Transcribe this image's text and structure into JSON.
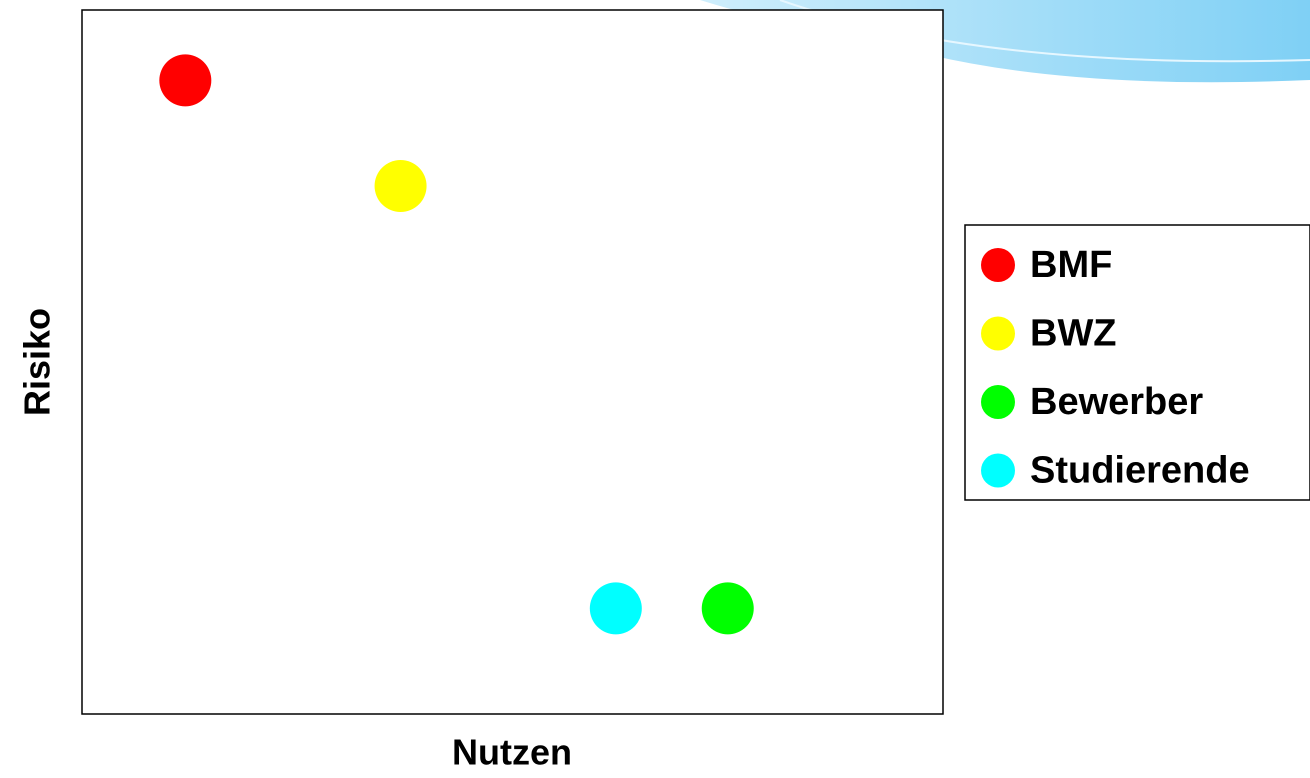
{
  "chart_data": {
    "type": "scatter",
    "x_label": "Nutzen",
    "y_label": "Risiko",
    "xlim": [
      0,
      10
    ],
    "ylim": [
      0,
      10
    ],
    "series": [
      {
        "name": "BMF",
        "color": "#ff0000",
        "x": [
          1.2
        ],
        "values": [
          9.0
        ]
      },
      {
        "name": "BWZ",
        "color": "#ffff00",
        "x": [
          3.7
        ],
        "values": [
          7.5
        ]
      },
      {
        "name": "Bewerber",
        "color": "#00ff00",
        "x": [
          7.5
        ],
        "values": [
          1.5
        ]
      },
      {
        "name": "Studierende",
        "color": "#00ffff",
        "x": [
          6.2
        ],
        "values": [
          1.5
        ]
      }
    ],
    "legend": "right"
  }
}
